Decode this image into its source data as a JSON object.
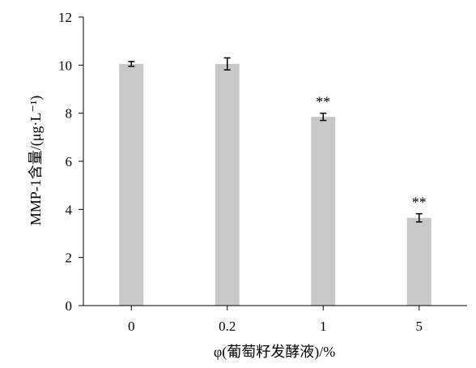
{
  "chart_data": {
    "type": "bar",
    "title": "",
    "xlabel": "φ(葡萄籽发酵液)/%",
    "ylabel": "MMP-1含量/(μg·L⁻¹)",
    "categories": [
      "0",
      "0.2",
      "1",
      "5"
    ],
    "values": [
      10.05,
      10.05,
      7.85,
      3.65
    ],
    "errors": [
      0.1,
      0.25,
      0.15,
      0.17
    ],
    "annotations": [
      "",
      "",
      "**",
      "**"
    ],
    "ylim": [
      0,
      12
    ],
    "yticks": [
      "0",
      "2",
      "4",
      "6",
      "8",
      "10",
      "12"
    ],
    "grid": false,
    "bar_color": "#c8c8c8",
    "axis_color": "#000000"
  }
}
